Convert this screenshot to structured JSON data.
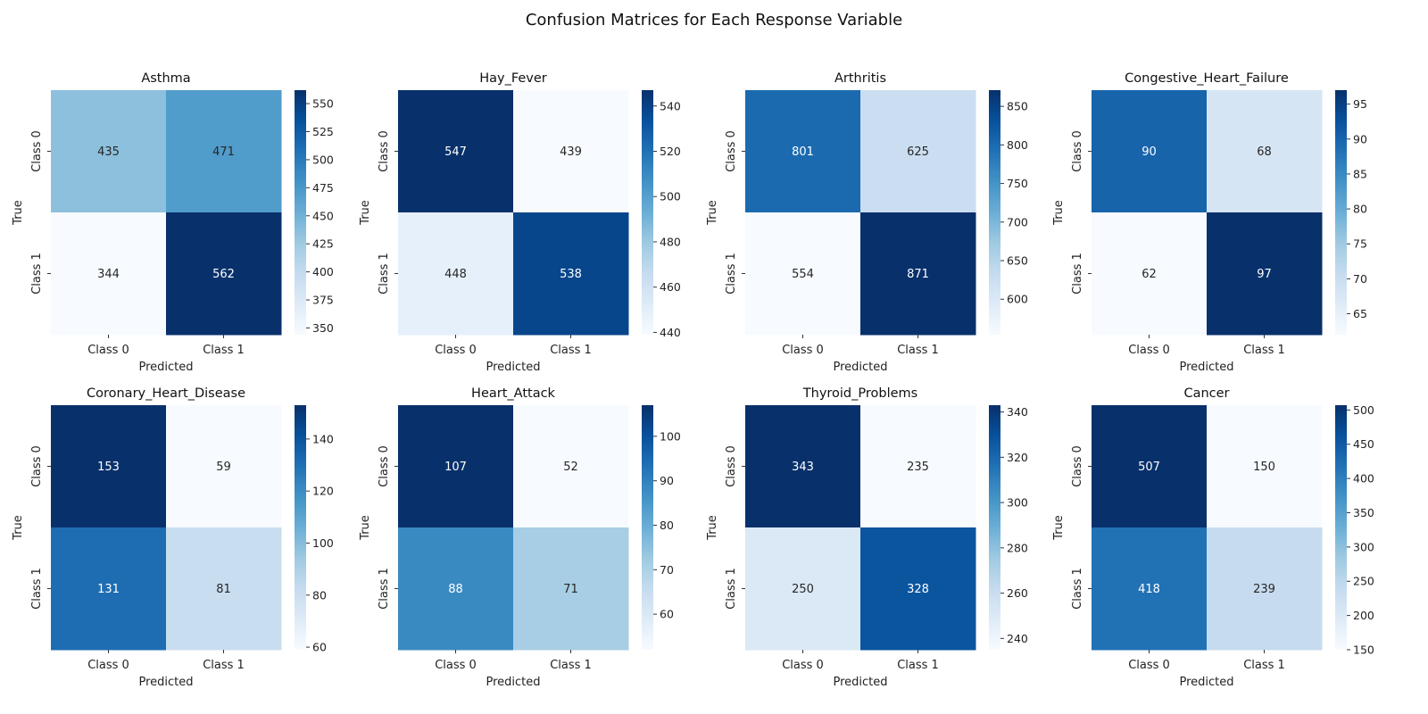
{
  "figure": {
    "title": "Confusion Matrices for Each Response Variable"
  },
  "chart_data": [
    {
      "type": "heatmap",
      "title": "Asthma",
      "xlabel": "Predicted",
      "ylabel": "True",
      "x_categories": [
        "Class 0",
        "Class 1"
      ],
      "y_categories": [
        "Class 0",
        "Class 1"
      ],
      "values": [
        [
          435,
          471
        ],
        [
          344,
          562
        ]
      ],
      "colorbar": {
        "min": 344,
        "max": 562,
        "ticks": [
          350,
          375,
          400,
          425,
          450,
          475,
          500,
          525,
          550
        ]
      }
    },
    {
      "type": "heatmap",
      "title": "Hay_Fever",
      "xlabel": "Predicted",
      "ylabel": "True",
      "x_categories": [
        "Class 0",
        "Class 1"
      ],
      "y_categories": [
        "Class 0",
        "Class 1"
      ],
      "values": [
        [
          547,
          439
        ],
        [
          448,
          538
        ]
      ],
      "colorbar": {
        "min": 439,
        "max": 547,
        "ticks": [
          440,
          460,
          480,
          500,
          520,
          540
        ]
      }
    },
    {
      "type": "heatmap",
      "title": "Arthritis",
      "xlabel": "Predicted",
      "ylabel": "True",
      "x_categories": [
        "Class 0",
        "Class 1"
      ],
      "y_categories": [
        "Class 0",
        "Class 1"
      ],
      "values": [
        [
          801,
          625
        ],
        [
          554,
          871
        ]
      ],
      "colorbar": {
        "min": 554,
        "max": 871,
        "ticks": [
          600,
          650,
          700,
          750,
          800,
          850
        ]
      }
    },
    {
      "type": "heatmap",
      "title": "Congestive_Heart_Failure",
      "xlabel": "Predicted",
      "ylabel": "True",
      "x_categories": [
        "Class 0",
        "Class 1"
      ],
      "y_categories": [
        "Class 0",
        "Class 1"
      ],
      "values": [
        [
          90,
          68
        ],
        [
          62,
          97
        ]
      ],
      "colorbar": {
        "min": 62,
        "max": 97,
        "ticks": [
          65,
          70,
          75,
          80,
          85,
          90,
          95
        ]
      }
    },
    {
      "type": "heatmap",
      "title": "Coronary_Heart_Disease",
      "xlabel": "Predicted",
      "ylabel": "True",
      "x_categories": [
        "Class 0",
        "Class 1"
      ],
      "y_categories": [
        "Class 0",
        "Class 1"
      ],
      "values": [
        [
          153,
          59
        ],
        [
          131,
          81
        ]
      ],
      "colorbar": {
        "min": 59,
        "max": 153,
        "ticks": [
          60,
          80,
          100,
          120,
          140
        ]
      }
    },
    {
      "type": "heatmap",
      "title": "Heart_Attack",
      "xlabel": "Predicted",
      "ylabel": "True",
      "x_categories": [
        "Class 0",
        "Class 1"
      ],
      "y_categories": [
        "Class 0",
        "Class 1"
      ],
      "values": [
        [
          107,
          52
        ],
        [
          88,
          71
        ]
      ],
      "colorbar": {
        "min": 52,
        "max": 107,
        "ticks": [
          60,
          70,
          80,
          90,
          100
        ]
      }
    },
    {
      "type": "heatmap",
      "title": "Thyroid_Problems",
      "xlabel": "Predicted",
      "ylabel": "True",
      "x_categories": [
        "Class 0",
        "Class 1"
      ],
      "y_categories": [
        "Class 0",
        "Class 1"
      ],
      "values": [
        [
          343,
          235
        ],
        [
          250,
          328
        ]
      ],
      "colorbar": {
        "min": 235,
        "max": 343,
        "ticks": [
          240,
          260,
          280,
          300,
          320,
          340
        ]
      }
    },
    {
      "type": "heatmap",
      "title": "Cancer",
      "xlabel": "Predicted",
      "ylabel": "True",
      "x_categories": [
        "Class 0",
        "Class 1"
      ],
      "y_categories": [
        "Class 0",
        "Class 1"
      ],
      "values": [
        [
          507,
          150
        ],
        [
          418,
          239
        ]
      ],
      "colorbar": {
        "min": 150,
        "max": 507,
        "ticks": [
          150,
          200,
          250,
          300,
          350,
          400,
          450,
          500
        ]
      }
    }
  ]
}
